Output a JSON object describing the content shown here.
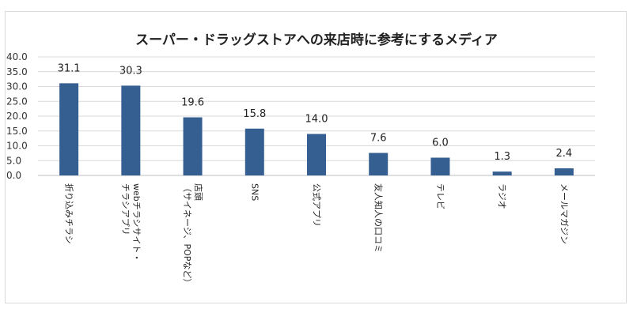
{
  "chart_data": {
    "type": "bar",
    "title": "スーパー・ドラッグストアへの来店時に参考にするメディア",
    "categories": [
      [
        "折り込みチラシ"
      ],
      [
        "webチラシサイト・",
        "チラシアプリ"
      ],
      [
        "店頭",
        "（サイネージ、POPなど）"
      ],
      [
        "SNS"
      ],
      [
        "公式アプリ"
      ],
      [
        "友人知人の口コミ"
      ],
      [
        "テレビ"
      ],
      [
        "ラジオ"
      ],
      [
        "メールマガジン"
      ]
    ],
    "values": [
      31.1,
      30.3,
      19.6,
      15.8,
      14.0,
      7.6,
      6.0,
      1.3,
      2.4
    ],
    "value_labels": [
      "31.1",
      "30.3",
      "19.6",
      "15.8",
      "14.0",
      "7.6",
      "6.0",
      "1.3",
      "2.4"
    ],
    "ylim": [
      0,
      40
    ],
    "yticks": [
      "0.0",
      "5.0",
      "10.0",
      "15.0",
      "20.0",
      "25.0",
      "30.0",
      "35.0",
      "40.0"
    ],
    "grid": true,
    "bar_color": "#365f91"
  }
}
